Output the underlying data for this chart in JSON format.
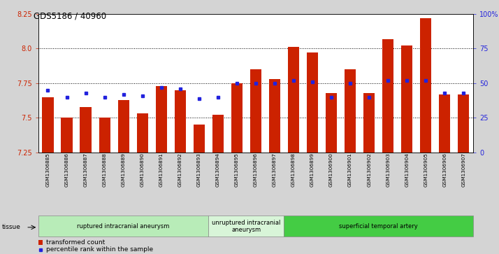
{
  "title": "GDS5186 / 40960",
  "samples": [
    "GSM1306885",
    "GSM1306886",
    "GSM1306887",
    "GSM1306888",
    "GSM1306889",
    "GSM1306890",
    "GSM1306891",
    "GSM1306892",
    "GSM1306893",
    "GSM1306894",
    "GSM1306895",
    "GSM1306896",
    "GSM1306897",
    "GSM1306898",
    "GSM1306899",
    "GSM1306900",
    "GSM1306901",
    "GSM1306902",
    "GSM1306903",
    "GSM1306904",
    "GSM1306905",
    "GSM1306906",
    "GSM1306907"
  ],
  "bar_values": [
    7.65,
    7.5,
    7.58,
    7.5,
    7.63,
    7.53,
    7.73,
    7.7,
    7.45,
    7.52,
    7.75,
    7.85,
    7.78,
    8.01,
    7.97,
    7.68,
    7.85,
    7.68,
    8.07,
    8.02,
    8.22,
    7.67,
    7.67
  ],
  "blue_values": [
    7.7,
    7.65,
    7.68,
    7.65,
    7.67,
    7.66,
    7.72,
    7.71,
    7.64,
    7.65,
    7.75,
    7.75,
    7.75,
    7.77,
    7.76,
    7.65,
    7.75,
    7.65,
    7.77,
    7.77,
    7.77,
    7.68,
    7.68
  ],
  "groups": [
    {
      "label": "ruptured intracranial aneurysm",
      "start": 0,
      "end": 9,
      "color": "#b8ecb8"
    },
    {
      "label": "unruptured intracranial\naneurysm",
      "start": 9,
      "end": 13,
      "color": "#d8f5d8"
    },
    {
      "label": "superficial temporal artery",
      "start": 13,
      "end": 23,
      "color": "#44cc44"
    }
  ],
  "bar_color": "#cc2200",
  "blue_color": "#2222dd",
  "ylim": [
    7.25,
    8.25
  ],
  "yticks": [
    7.25,
    7.5,
    7.75,
    8.0,
    8.25
  ],
  "right_ytick_vals": [
    0,
    25,
    50,
    75,
    100
  ],
  "right_ytick_labels": [
    "0",
    "25",
    "50",
    "75",
    "100%"
  ],
  "bg_color": "#d4d4d4",
  "plot_bg": "#ffffff",
  "grid_vals": [
    7.5,
    7.75,
    8.0
  ],
  "legend_bar_label": "transformed count",
  "legend_dot_label": "percentile rank within the sample",
  "tissue_label": "tissue"
}
